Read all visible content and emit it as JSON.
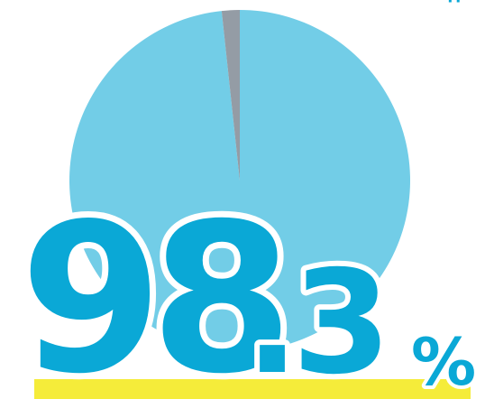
{
  "chart_data": {
    "type": "pie",
    "slices": [
      {
        "label": "",
        "value": 98.3,
        "color": "#72cde7"
      },
      {
        "label": "",
        "value": 1.7,
        "color": "#949ca5"
      }
    ],
    "title": ""
  },
  "big_number": {
    "integer": "98",
    "decimal": ".3",
    "unit": "%",
    "color": "#0aa8d6"
  },
  "colors": {
    "highlight": "#f5ec3a",
    "background": "#ffffff"
  }
}
